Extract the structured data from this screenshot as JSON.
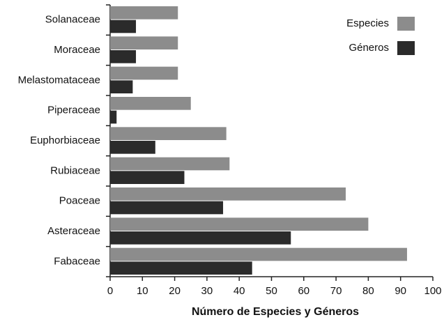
{
  "chart_data": {
    "type": "hbar",
    "xlabel": "Número de Especies y Géneros",
    "categories": [
      "Solanaceae",
      "Moraceae",
      "Melastomataceae",
      "Piperaceae",
      "Euphorbiaceae",
      "Rubiaceae",
      "Poaceae",
      "Asteraceae",
      "Fabaceae"
    ],
    "series": [
      {
        "name": "Especies",
        "color": "#8c8c8c",
        "values": [
          21,
          21,
          21,
          25,
          36,
          37,
          73,
          80,
          92
        ]
      },
      {
        "name": "Géneros",
        "color": "#2b2b2b",
        "values": [
          8,
          8,
          7,
          2,
          14,
          23,
          35,
          56,
          44
        ]
      }
    ],
    "xlim": [
      0,
      100
    ],
    "xticks": [
      0,
      10,
      20,
      30,
      40,
      50,
      60,
      70,
      80,
      90,
      100
    ],
    "legend": "top-right"
  }
}
